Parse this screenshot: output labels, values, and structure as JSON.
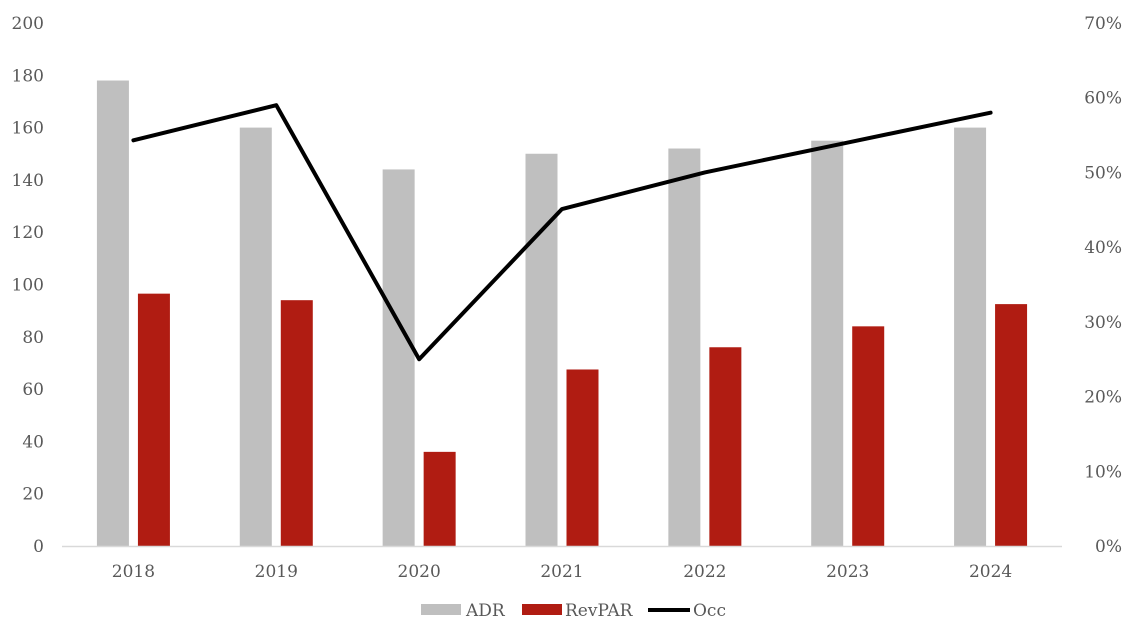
{
  "chart_data": {
    "type": "bar",
    "title": "",
    "xlabel": "",
    "ylabel": "",
    "categories": [
      "2018",
      "2019",
      "2020",
      "2021",
      "2022",
      "2023",
      "2024"
    ],
    "series": [
      {
        "name": "ADR",
        "type": "bar",
        "axis": "left",
        "color": "#bfbfbf",
        "values": [
          178,
          160,
          144,
          150,
          152,
          155,
          160
        ]
      },
      {
        "name": "RevPAR",
        "type": "bar",
        "axis": "left",
        "color": "#b01c12",
        "values": [
          96.5,
          94,
          36,
          67.5,
          76,
          84,
          92.5
        ]
      },
      {
        "name": "Occ",
        "type": "line",
        "axis": "right",
        "color": "#000000",
        "values": [
          0.543,
          0.59,
          0.25,
          0.451,
          0.5,
          0.54,
          0.58
        ]
      }
    ],
    "left_axis": {
      "min": 0,
      "max": 200,
      "ticks": [
        "0",
        "20",
        "40",
        "60",
        "80",
        "100",
        "120",
        "140",
        "160",
        "180",
        "200"
      ]
    },
    "right_axis": {
      "min": 0,
      "max": 0.7,
      "ticks": [
        "0%",
        "10%",
        "20%",
        "30%",
        "40%",
        "50%",
        "60%",
        "70%"
      ]
    },
    "grid": false,
    "legend": "bottom-center"
  }
}
